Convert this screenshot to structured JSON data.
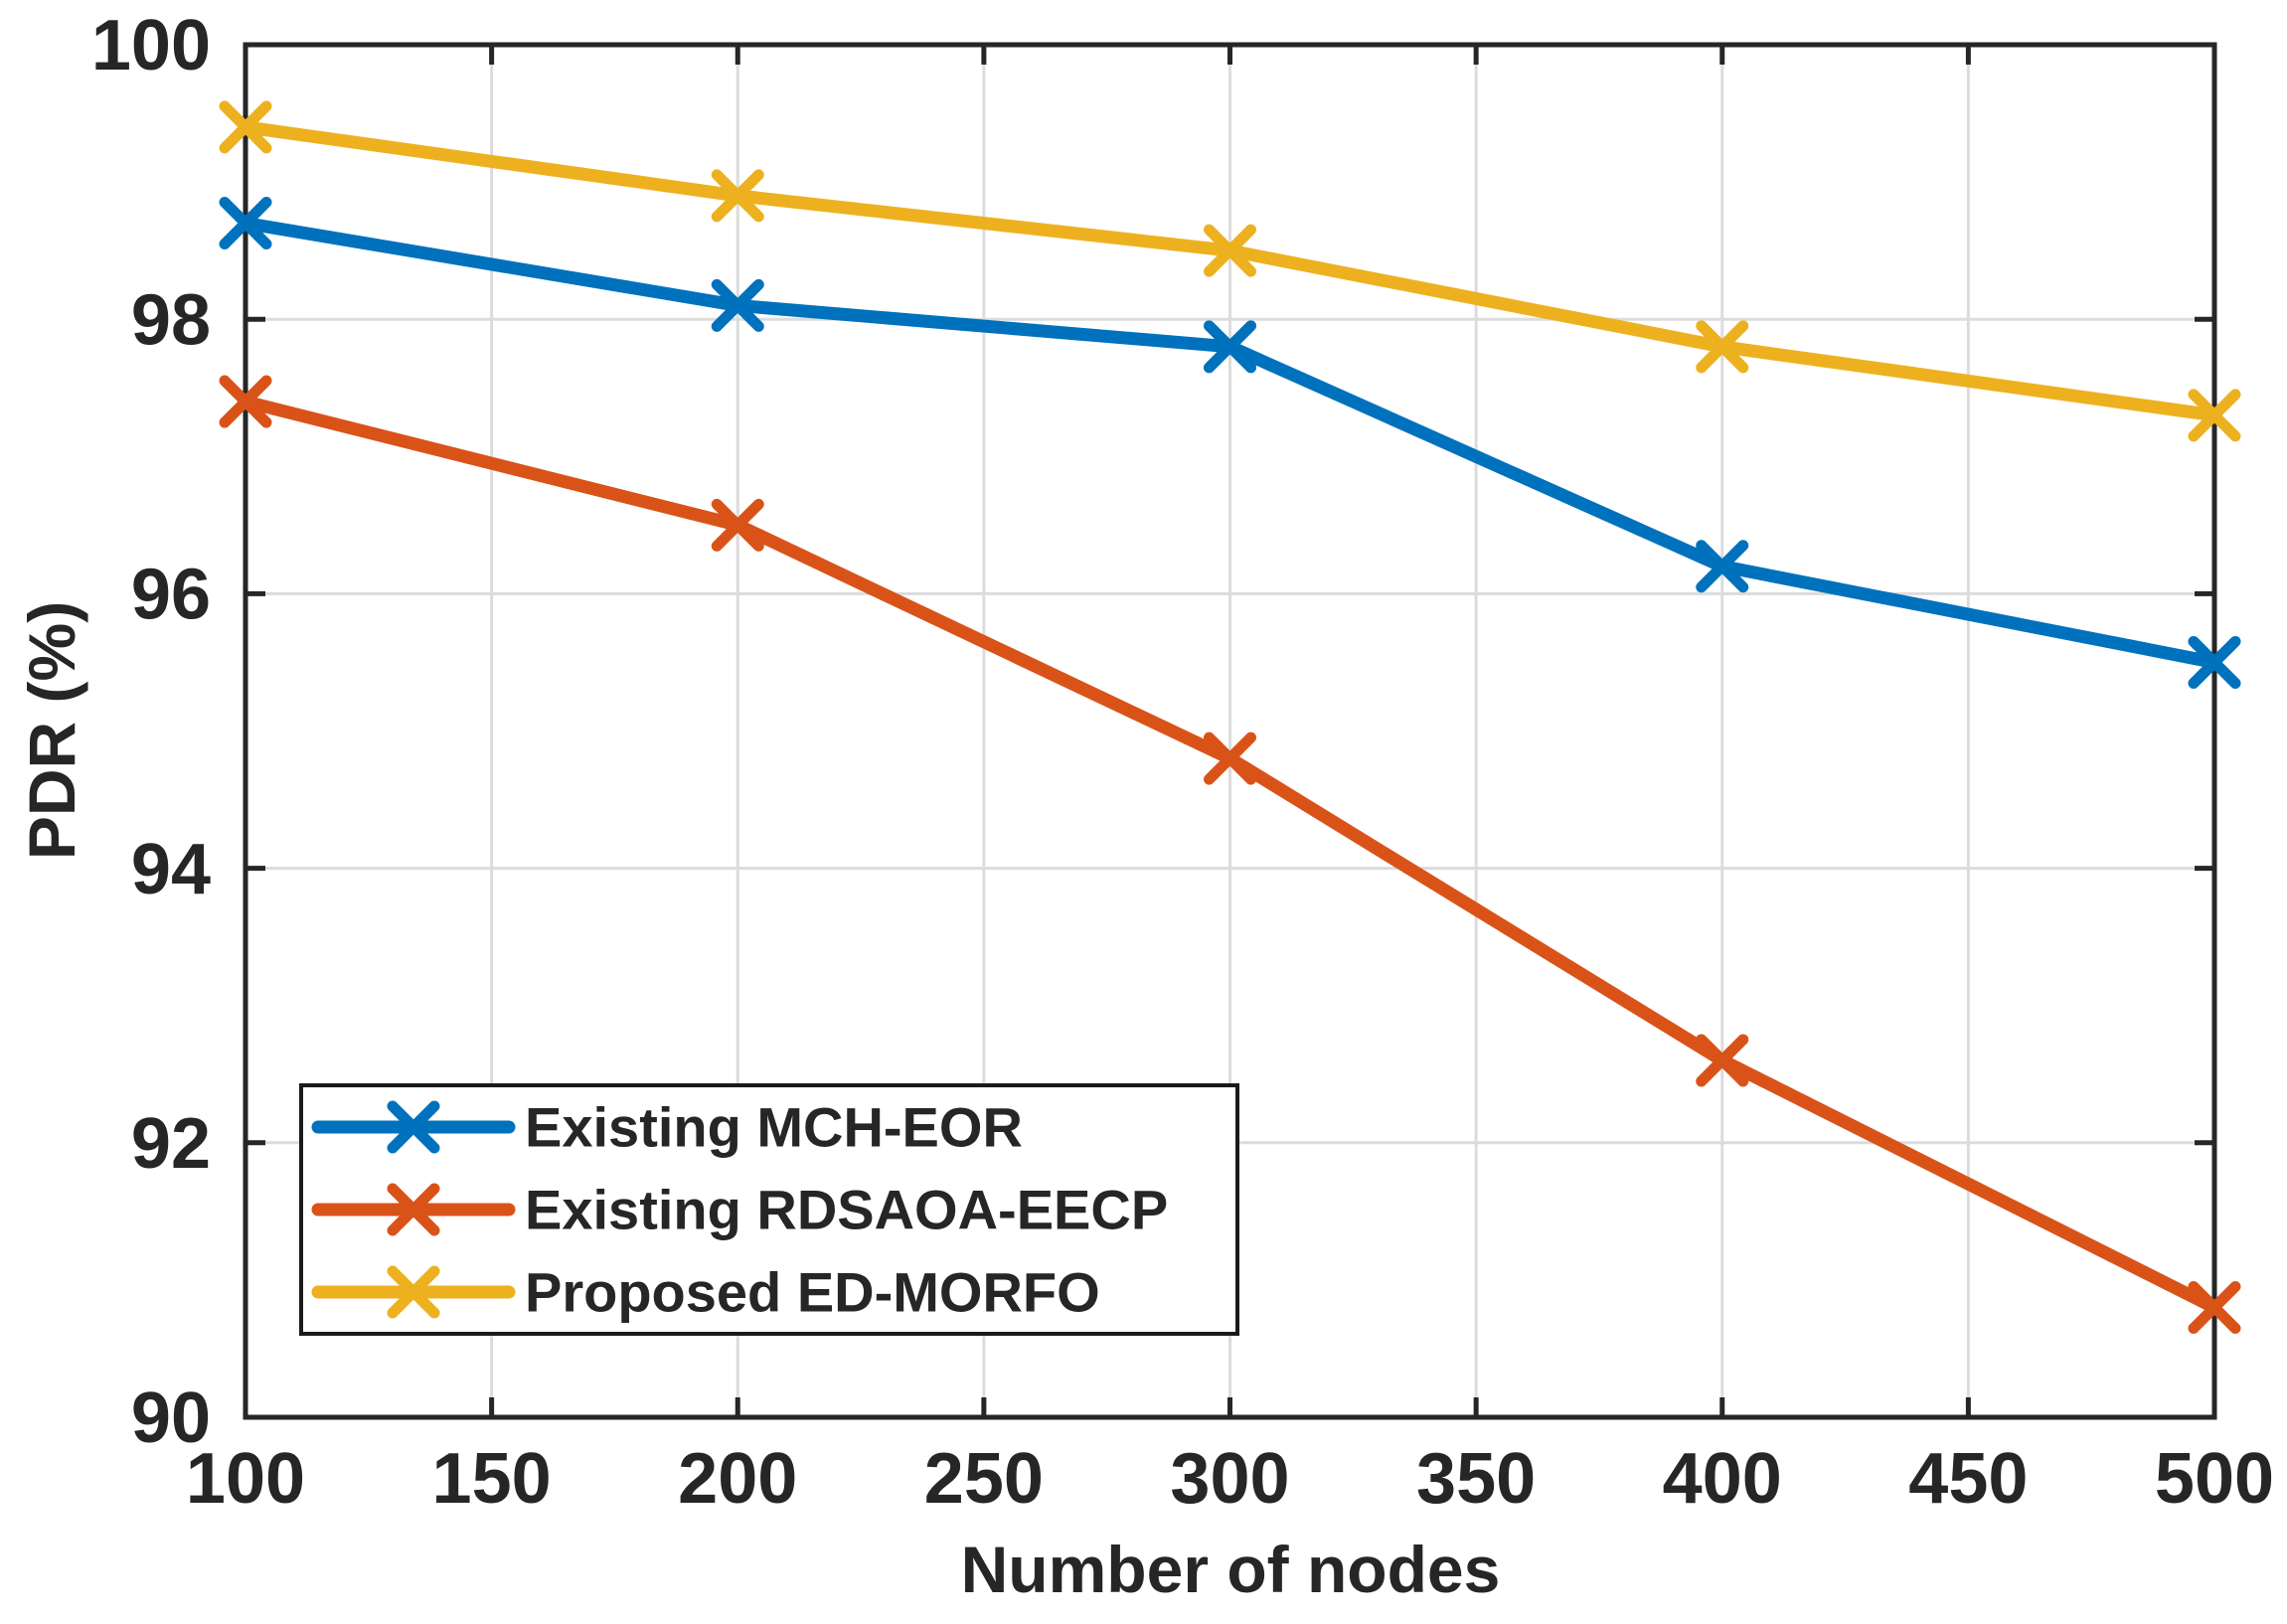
{
  "figure": {
    "background": "#ffffff",
    "axes_color": "#262626",
    "grid_color": "#dcdcdc",
    "text_color": "#262626",
    "legend_border_color": "#1a1a1a",
    "legend_background": "#ffffff"
  },
  "chart_data": {
    "type": "line",
    "title": "",
    "xlabel": "Number of nodes",
    "ylabel": "PDR (%)",
    "x": [
      100,
      200,
      300,
      400,
      500
    ],
    "series": [
      {
        "name": "Existing MCH-EOR",
        "color": "#0072BD",
        "marker": "x",
        "values": [
          98.7,
          98.1,
          97.8,
          96.2,
          95.5
        ]
      },
      {
        "name": "Existing RDSAOA-EECP",
        "color": "#D95319",
        "marker": "x",
        "values": [
          97.4,
          96.5,
          94.8,
          92.6,
          90.8
        ]
      },
      {
        "name": "Proposed ED-MORFO",
        "color": "#EDB120",
        "marker": "x",
        "values": [
          99.4,
          98.9,
          98.5,
          97.8,
          97.3
        ]
      }
    ],
    "xlim": [
      100,
      500
    ],
    "ylim": [
      90,
      100
    ],
    "xticks": [
      100,
      150,
      200,
      250,
      300,
      350,
      400,
      450,
      500
    ],
    "yticks": [
      90,
      92,
      94,
      96,
      98,
      100
    ],
    "grid": true,
    "legend": {
      "position": "lower-left",
      "entries": [
        "Existing MCH-EOR",
        "Existing RDSAOA-EECP",
        "Proposed ED-MORFO"
      ]
    }
  }
}
